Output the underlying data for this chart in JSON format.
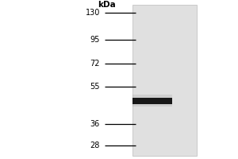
{
  "kda_label": "kDa",
  "mw_markers": [
    130,
    95,
    72,
    55,
    36,
    28
  ],
  "band_kda": 47.0,
  "band_color": "#111111",
  "band_alpha": 0.95,
  "blot_bg_color": "#e0e0e0",
  "outer_bg_color": "#ffffff",
  "ylim_log_min": 24,
  "ylim_log_max": 150,
  "marker_fontsize": 7.0,
  "kda_fontsize": 7.5,
  "fig_width": 3.0,
  "fig_height": 2.0,
  "fig_dpi": 100
}
